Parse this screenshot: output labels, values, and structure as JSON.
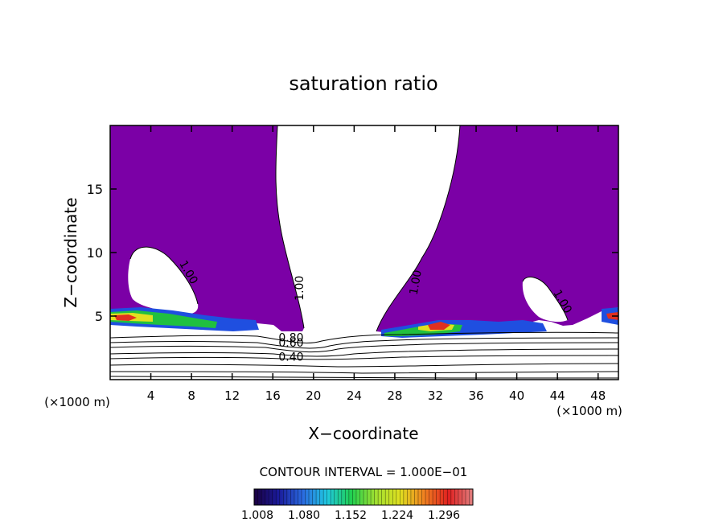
{
  "chart_data": {
    "type": "heatmap",
    "title": "saturation ratio",
    "xlabel": "X−coordinate",
    "ylabel": "Z−coordinate",
    "x_unit_left": "(×1000 m)",
    "x_unit_right": "(×1000 m)",
    "xlim": [
      0,
      50
    ],
    "ylim": [
      0,
      20
    ],
    "x_ticks": [
      4,
      8,
      12,
      16,
      20,
      24,
      28,
      32,
      36,
      40,
      44,
      48
    ],
    "y_ticks": [
      5,
      10,
      15
    ],
    "contour_interval_text": "CONTOUR INTERVAL = 1.000E−01",
    "contour_labels": [
      {
        "text": "1.00",
        "x": 7.4,
        "y": 8.3,
        "rotate": 60
      },
      {
        "text": "1.00",
        "x": 19.0,
        "y": 7.2,
        "rotate": -90
      },
      {
        "text": "1.00",
        "x": 30.4,
        "y": 7.6,
        "rotate": -80
      },
      {
        "text": "1.00",
        "x": 44.2,
        "y": 6.0,
        "rotate": 60
      },
      {
        "text": "0.80",
        "x": 17.8,
        "y": 3.0,
        "rotate": 0
      },
      {
        "text": "0.60",
        "x": 17.8,
        "y": 2.6,
        "rotate": 0
      },
      {
        "text": "0.40",
        "x": 17.8,
        "y": 1.5,
        "rotate": 0
      }
    ],
    "colorbar": {
      "labels": [
        "1.008",
        "1.080",
        "1.152",
        "1.224",
        "1.296"
      ],
      "colors": [
        "#1a0040",
        "#1a1a9a",
        "#2a6ae0",
        "#20c8e0",
        "#20d050",
        "#a0e030",
        "#e0e020",
        "#f08020",
        "#e02020",
        "#e08080"
      ]
    },
    "colors": {
      "supersaturated": "#7b00a6",
      "moderate": "#1f4fe0",
      "high": "#20c040",
      "peak": "#e03020"
    }
  }
}
